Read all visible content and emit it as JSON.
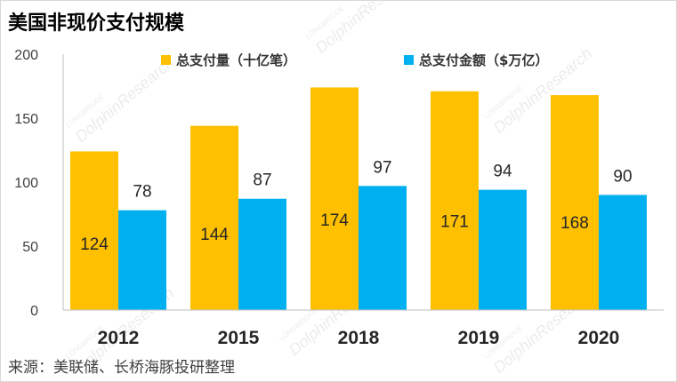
{
  "chart_data": {
    "type": "bar",
    "title": "美国非现价支付规模",
    "categories": [
      "2012",
      "2015",
      "2018",
      "2019",
      "2020"
    ],
    "series": [
      {
        "name": "总支付量（十亿笔）",
        "values": [
          124,
          144,
          174,
          171,
          168
        ],
        "color": "#FFC000"
      },
      {
        "name": "总支付金额（$万亿）",
        "values": [
          78,
          87,
          97,
          94,
          90
        ],
        "color": "#00B0F0"
      }
    ],
    "ylim": [
      0,
      200
    ],
    "yticks": [
      0,
      50,
      100,
      150,
      200
    ],
    "xlabel": "",
    "ylabel": "",
    "grid": false,
    "legend_position": "top-right"
  },
  "source_note": "来源：美联储、长桥海豚投研整理",
  "watermark": {
    "brand": "DolphinResearch",
    "sub": "LONGBRIDGE"
  }
}
